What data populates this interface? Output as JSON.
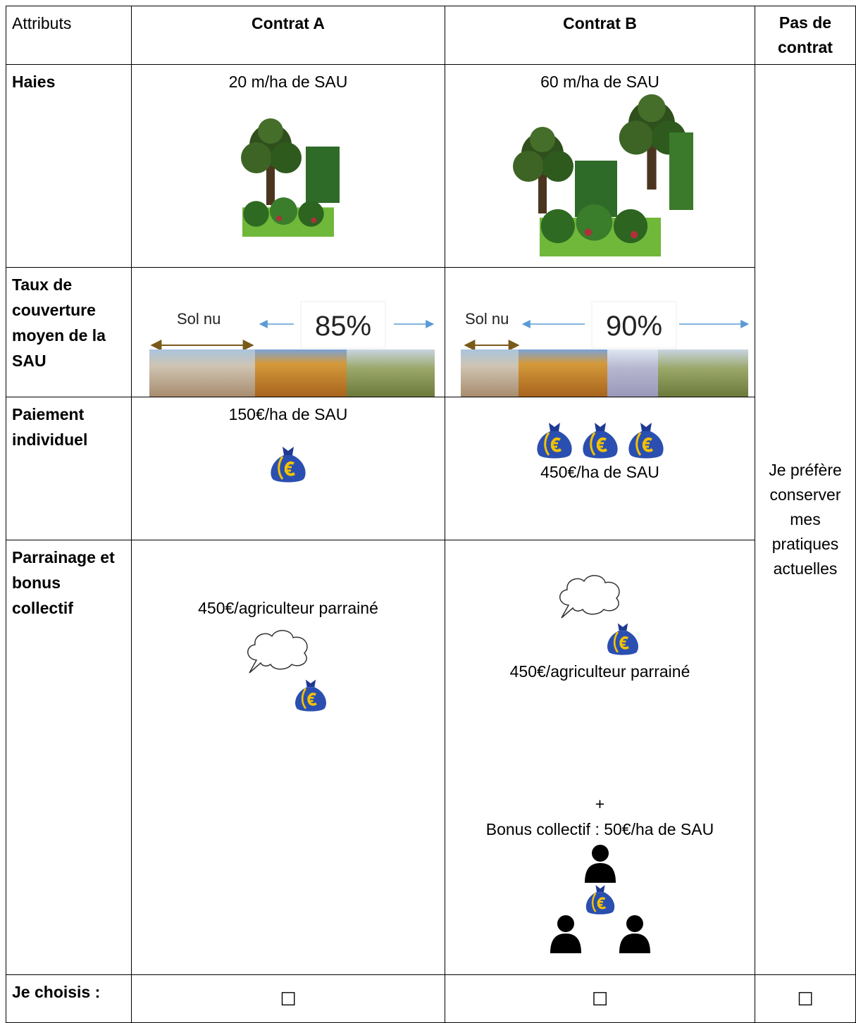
{
  "table": {
    "header": [
      "Attributs",
      "Contrat A",
      "Contrat B",
      "Pas de contrat"
    ],
    "rows": [
      {
        "attribute": "Haies",
        "contract_a": "20 m/ha de SAU",
        "contract_b": "60 m/ha de SAU"
      },
      {
        "attribute": "Taux de couverture moyen de la SAU",
        "contract_a": {
          "label": "Sol nu",
          "percent": "85%"
        },
        "contract_b": {
          "label": "Sol nu",
          "percent": "90%"
        }
      },
      {
        "attribute": "Paiement individuel",
        "contract_a": "150€/ha de SAU",
        "contract_b": "450€/ha de SAU"
      },
      {
        "attribute": "Parrainage et bonus collectif",
        "contract_a": "450€/agriculteur parrainé",
        "contract_b": {
          "referral": "450€/agriculteur parrainé",
          "plus": "+",
          "bonus": "Bonus collectif : 50€/ha de SAU"
        }
      },
      {
        "attribute": "Je choisis :",
        "contract_a": "☐",
        "contract_b": "☐",
        "no_contract": "☐"
      }
    ],
    "no_contract_text": "Je préfère conserver mes pratiques actuelles"
  }
}
